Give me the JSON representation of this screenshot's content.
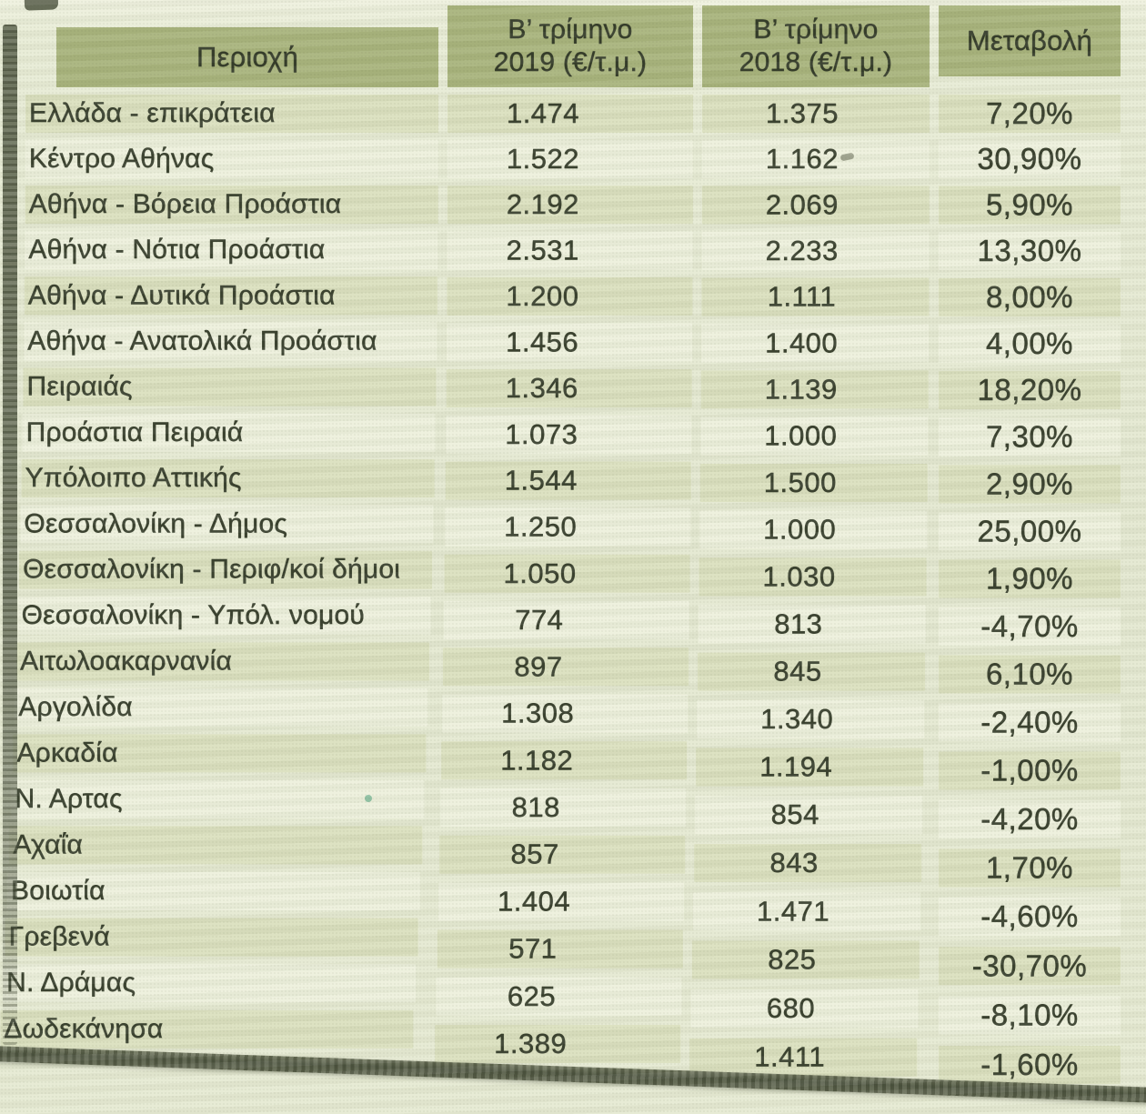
{
  "table": {
    "header": {
      "region": "Περιοχή",
      "q2_2019_line1": "Β’ τρίμηνο",
      "q2_2019_line2": "2019 (€/τ.μ.)",
      "q2_2018_line1": "Β’ τρίμηνο",
      "q2_2018_line2": "2018 (€/τ.μ.)",
      "change": "Μεταβολή"
    },
    "rows": [
      {
        "region": "Ελλάδα - επικράτεια",
        "q2_2019": "1.474",
        "q2_2018": "1.375",
        "change": "7,20%"
      },
      {
        "region": "Κέντρο Αθήνας",
        "q2_2019": "1.522",
        "q2_2018": "1.162",
        "change": "30,90%"
      },
      {
        "region": "Αθήνα - Βόρεια Προάστια",
        "q2_2019": "2.192",
        "q2_2018": "2.069",
        "change": "5,90%"
      },
      {
        "region": "Αθήνα - Νότια Προάστια",
        "q2_2019": "2.531",
        "q2_2018": "2.233",
        "change": "13,30%"
      },
      {
        "region": "Αθήνα - Δυτικά Προάστια",
        "q2_2019": "1.200",
        "q2_2018": "1.111",
        "change": "8,00%"
      },
      {
        "region": "Αθήνα - Ανατολικά Προάστια",
        "q2_2019": "1.456",
        "q2_2018": "1.400",
        "change": "4,00%"
      },
      {
        "region": "Πειραιάς",
        "q2_2019": "1.346",
        "q2_2018": "1.139",
        "change": "18,20%"
      },
      {
        "region": "Προάστια Πειραιά",
        "q2_2019": "1.073",
        "q2_2018": "1.000",
        "change": "7,30%"
      },
      {
        "region": "Υπόλοιπο Αττικής",
        "q2_2019": "1.544",
        "q2_2018": "1.500",
        "change": "2,90%"
      },
      {
        "region": "Θεσσαλονίκη - Δήμος",
        "q2_2019": "1.250",
        "q2_2018": "1.000",
        "change": "25,00%"
      },
      {
        "region": "Θεσσαλονίκη - Περιφ/κοί δήμοι",
        "q2_2019": "1.050",
        "q2_2018": "1.030",
        "change": "1,90%"
      },
      {
        "region": "Θεσσαλονίκη - Υπόλ. νομού",
        "q2_2019": "774",
        "q2_2018": "813",
        "change": "-4,70%"
      },
      {
        "region": "Αιτωλοακαρνανία",
        "q2_2019": "897",
        "q2_2018": "845",
        "change": "6,10%"
      },
      {
        "region": "Αργολίδα",
        "q2_2019": "1.308",
        "q2_2018": "1.340",
        "change": "-2,40%"
      },
      {
        "region": "Αρκαδία",
        "q2_2019": "1.182",
        "q2_2018": "1.194",
        "change": "-1,00%"
      },
      {
        "region": "Ν. Αρτας",
        "q2_2019": "818",
        "q2_2018": "854",
        "change": "-4,20%"
      },
      {
        "region": "Αχαΐα",
        "q2_2019": "857",
        "q2_2018": "843",
        "change": "1,70%"
      },
      {
        "region": "Βοιωτία",
        "q2_2019": "1.404",
        "q2_2018": "1.471",
        "change": "-4,60%"
      },
      {
        "region": "Γρεβενά",
        "q2_2019": "571",
        "q2_2018": "825",
        "change": "-30,70%"
      },
      {
        "region": "Ν. Δράμας",
        "q2_2019": "625",
        "q2_2018": "680",
        "change": "-8,10%"
      },
      {
        "region": "Δωδεκάνησα",
        "q2_2019": "1.389",
        "q2_2018": "1.411",
        "change": "-1,60%"
      }
    ]
  },
  "chart_data": {
    "type": "table",
    "columns": [
      "Περιοχή",
      "Β’ τρίμηνο 2019 (€/τ.μ.)",
      "Β’ τρίμηνο 2018 (€/τ.μ.)",
      "Μεταβολή"
    ],
    "rows": [
      [
        "Ελλάδα - επικράτεια",
        1474,
        1375,
        7.2
      ],
      [
        "Κέντρο Αθήνας",
        1522,
        1162,
        30.9
      ],
      [
        "Αθήνα - Βόρεια Προάστια",
        2192,
        2069,
        5.9
      ],
      [
        "Αθήνα - Νότια Προάστια",
        2531,
        2233,
        13.3
      ],
      [
        "Αθήνα - Δυτικά Προάστια",
        1200,
        1111,
        8.0
      ],
      [
        "Αθήνα - Ανατολικά Προάστια",
        1456,
        1400,
        4.0
      ],
      [
        "Πειραιάς",
        1346,
        1139,
        18.2
      ],
      [
        "Προάστια Πειραιά",
        1073,
        1000,
        7.3
      ],
      [
        "Υπόλοιπο Αττικής",
        1544,
        1500,
        2.9
      ],
      [
        "Θεσσαλονίκη - Δήμος",
        1250,
        1000,
        25.0
      ],
      [
        "Θεσσαλονίκη - Περιφ/κοί δήμοι",
        1050,
        1030,
        1.9
      ],
      [
        "Θεσσαλονίκη - Υπόλ. νομού",
        774,
        813,
        -4.7
      ],
      [
        "Αιτωλοακαρνανία",
        897,
        845,
        6.1
      ],
      [
        "Αργολίδα",
        1308,
        1340,
        -2.4
      ],
      [
        "Αρκαδία",
        1182,
        1194,
        -1.0
      ],
      [
        "Ν. Αρτας",
        818,
        854,
        -4.2
      ],
      [
        "Αχαΐα",
        857,
        843,
        1.7
      ],
      [
        "Βοιωτία",
        1404,
        1471,
        -4.6
      ],
      [
        "Γρεβενά",
        571,
        825,
        -30.7
      ],
      [
        "Ν. Δράμας",
        625,
        680,
        -8.1
      ],
      [
        "Δωδεκάνησα",
        1389,
        1411,
        -1.6
      ]
    ],
    "units": "€/τ.μ.",
    "change_units": "%"
  },
  "colors": {
    "paper": "#e6ead3",
    "header_cell": "#a9b47d",
    "row_stripe_dark": "#dbe0bf",
    "row_stripe_light": "#edf0dc",
    "text": "#3a412f",
    "scan_edge": "#68705a",
    "bottom_rule": "#5d6450"
  }
}
